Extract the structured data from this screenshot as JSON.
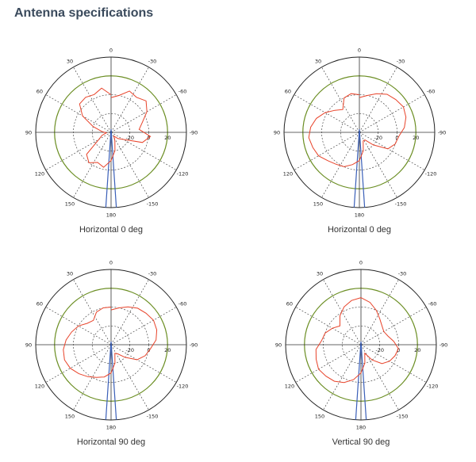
{
  "page": {
    "title": "Antenna specifications"
  },
  "chart_data": [
    {
      "type": "polar",
      "caption": "Horizontal 0 deg",
      "angle_labels": [
        "0",
        "-30",
        "-60",
        "-90",
        "-120",
        "-150",
        "180",
        "150",
        "120",
        "90",
        "60",
        "30"
      ],
      "radial_labels": [
        "-20",
        "0",
        "20"
      ],
      "rlim": [
        -40,
        40
      ],
      "reference_ring": 20,
      "series": [
        {
          "color": "#e8432a",
          "r": [
            -3,
            0,
            8,
            6,
            10,
            4,
            -5,
            -10,
            2,
            -5,
            -25,
            -30,
            -35,
            -30,
            -20,
            -10,
            -2,
            -5,
            0,
            -5,
            -25,
            -30,
            -35,
            -30,
            -20,
            -5,
            5,
            6,
            4,
            8,
            0
          ]
        },
        {
          "color": "#3a5fb8",
          "beam_halfwidth_deg": 4
        }
      ]
    },
    {
      "type": "polar",
      "caption": "Horizontal 0 deg",
      "angle_labels": [
        "0",
        "-30",
        "-60",
        "-90",
        "-120",
        "-150",
        "180",
        "150",
        "120",
        "90",
        "60",
        "30"
      ],
      "radial_labels": [
        "-20",
        "0",
        "20"
      ],
      "rlim": [
        -40,
        40
      ],
      "reference_ring": 20,
      "series": [
        {
          "color": "#e8432a",
          "r": [
            -3,
            0,
            5,
            10,
            12,
            14,
            12,
            8,
            2,
            0,
            -5,
            -20,
            -30,
            -30,
            -20,
            -10,
            -5,
            0,
            2,
            5,
            10,
            12,
            14,
            12,
            8,
            2,
            -5,
            -10,
            0,
            2,
            0
          ]
        },
        {
          "color": "#3a5fb8",
          "beam_halfwidth_deg": 4
        }
      ]
    },
    {
      "type": "polar",
      "caption": "Horizontal 90 deg",
      "angle_labels": [
        "0",
        "-30",
        "-60",
        "-90",
        "-120",
        "-150",
        "180",
        "150",
        "120",
        "90",
        "60",
        "30"
      ],
      "radial_labels": [
        "-20",
        "0",
        "20"
      ],
      "rlim": [
        -40,
        40
      ],
      "reference_ring": 20,
      "series": [
        {
          "color": "#e8432a",
          "r": [
            -3,
            0,
            4,
            8,
            10,
            12,
            11,
            8,
            2,
            -2,
            -8,
            -20,
            -28,
            -30,
            -20,
            -10,
            -5,
            -2,
            2,
            6,
            10,
            12,
            11,
            8,
            4,
            0,
            -6,
            -8,
            -2,
            0,
            0
          ]
        },
        {
          "color": "#3a5fb8",
          "beam_halfwidth_deg": 4
        }
      ]
    },
    {
      "type": "polar",
      "caption": "Vertical 90 deg",
      "angle_labels": [
        "0",
        "-30",
        "-60",
        "-90",
        "-120",
        "-150",
        "180",
        "150",
        "120",
        "90",
        "60",
        "30"
      ],
      "radial_labels": [
        "-20",
        "0",
        "20"
      ],
      "rlim": [
        -40,
        40
      ],
      "reference_ring": 20,
      "series": [
        {
          "color": "#e8432a",
          "r": [
            10,
            6,
            0,
            -6,
            -10,
            -12,
            -10,
            -5,
            0,
            -2,
            -5,
            -10,
            -20,
            -30,
            -20,
            -10,
            -2,
            4,
            8,
            10,
            12,
            10,
            8,
            2,
            0,
            -5,
            -10,
            -2,
            4,
            8,
            10
          ]
        },
        {
          "color": "#3a5fb8",
          "beam_halfwidth_deg": 4
        }
      ]
    }
  ]
}
